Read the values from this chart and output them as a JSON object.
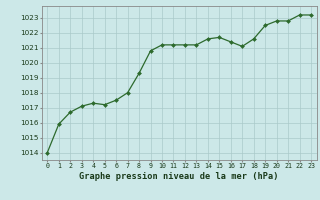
{
  "x": [
    0,
    1,
    2,
    3,
    4,
    5,
    6,
    7,
    8,
    9,
    10,
    11,
    12,
    13,
    14,
    15,
    16,
    17,
    18,
    19,
    20,
    21,
    22,
    23
  ],
  "y": [
    1014.0,
    1015.9,
    1016.7,
    1017.1,
    1017.3,
    1017.2,
    1017.5,
    1018.0,
    1019.3,
    1020.8,
    1021.2,
    1021.2,
    1021.2,
    1021.2,
    1021.6,
    1021.7,
    1021.4,
    1021.1,
    1021.6,
    1022.5,
    1022.8,
    1022.8,
    1023.2,
    1023.2
  ],
  "line_color": "#2d6a2d",
  "marker_color": "#2d6a2d",
  "bg_color": "#cce8e8",
  "grid_color": "#aacaca",
  "xlabel": "Graphe pression niveau de la mer (hPa)",
  "xlabel_color": "#1a3a1a",
  "xlim": [
    -0.5,
    23.5
  ],
  "ylim": [
    1013.5,
    1023.8
  ],
  "yticks": [
    1014,
    1015,
    1016,
    1017,
    1018,
    1019,
    1020,
    1021,
    1022,
    1023
  ],
  "xticks": [
    0,
    1,
    2,
    3,
    4,
    5,
    6,
    7,
    8,
    9,
    10,
    11,
    12,
    13,
    14,
    15,
    16,
    17,
    18,
    19,
    20,
    21,
    22,
    23
  ]
}
